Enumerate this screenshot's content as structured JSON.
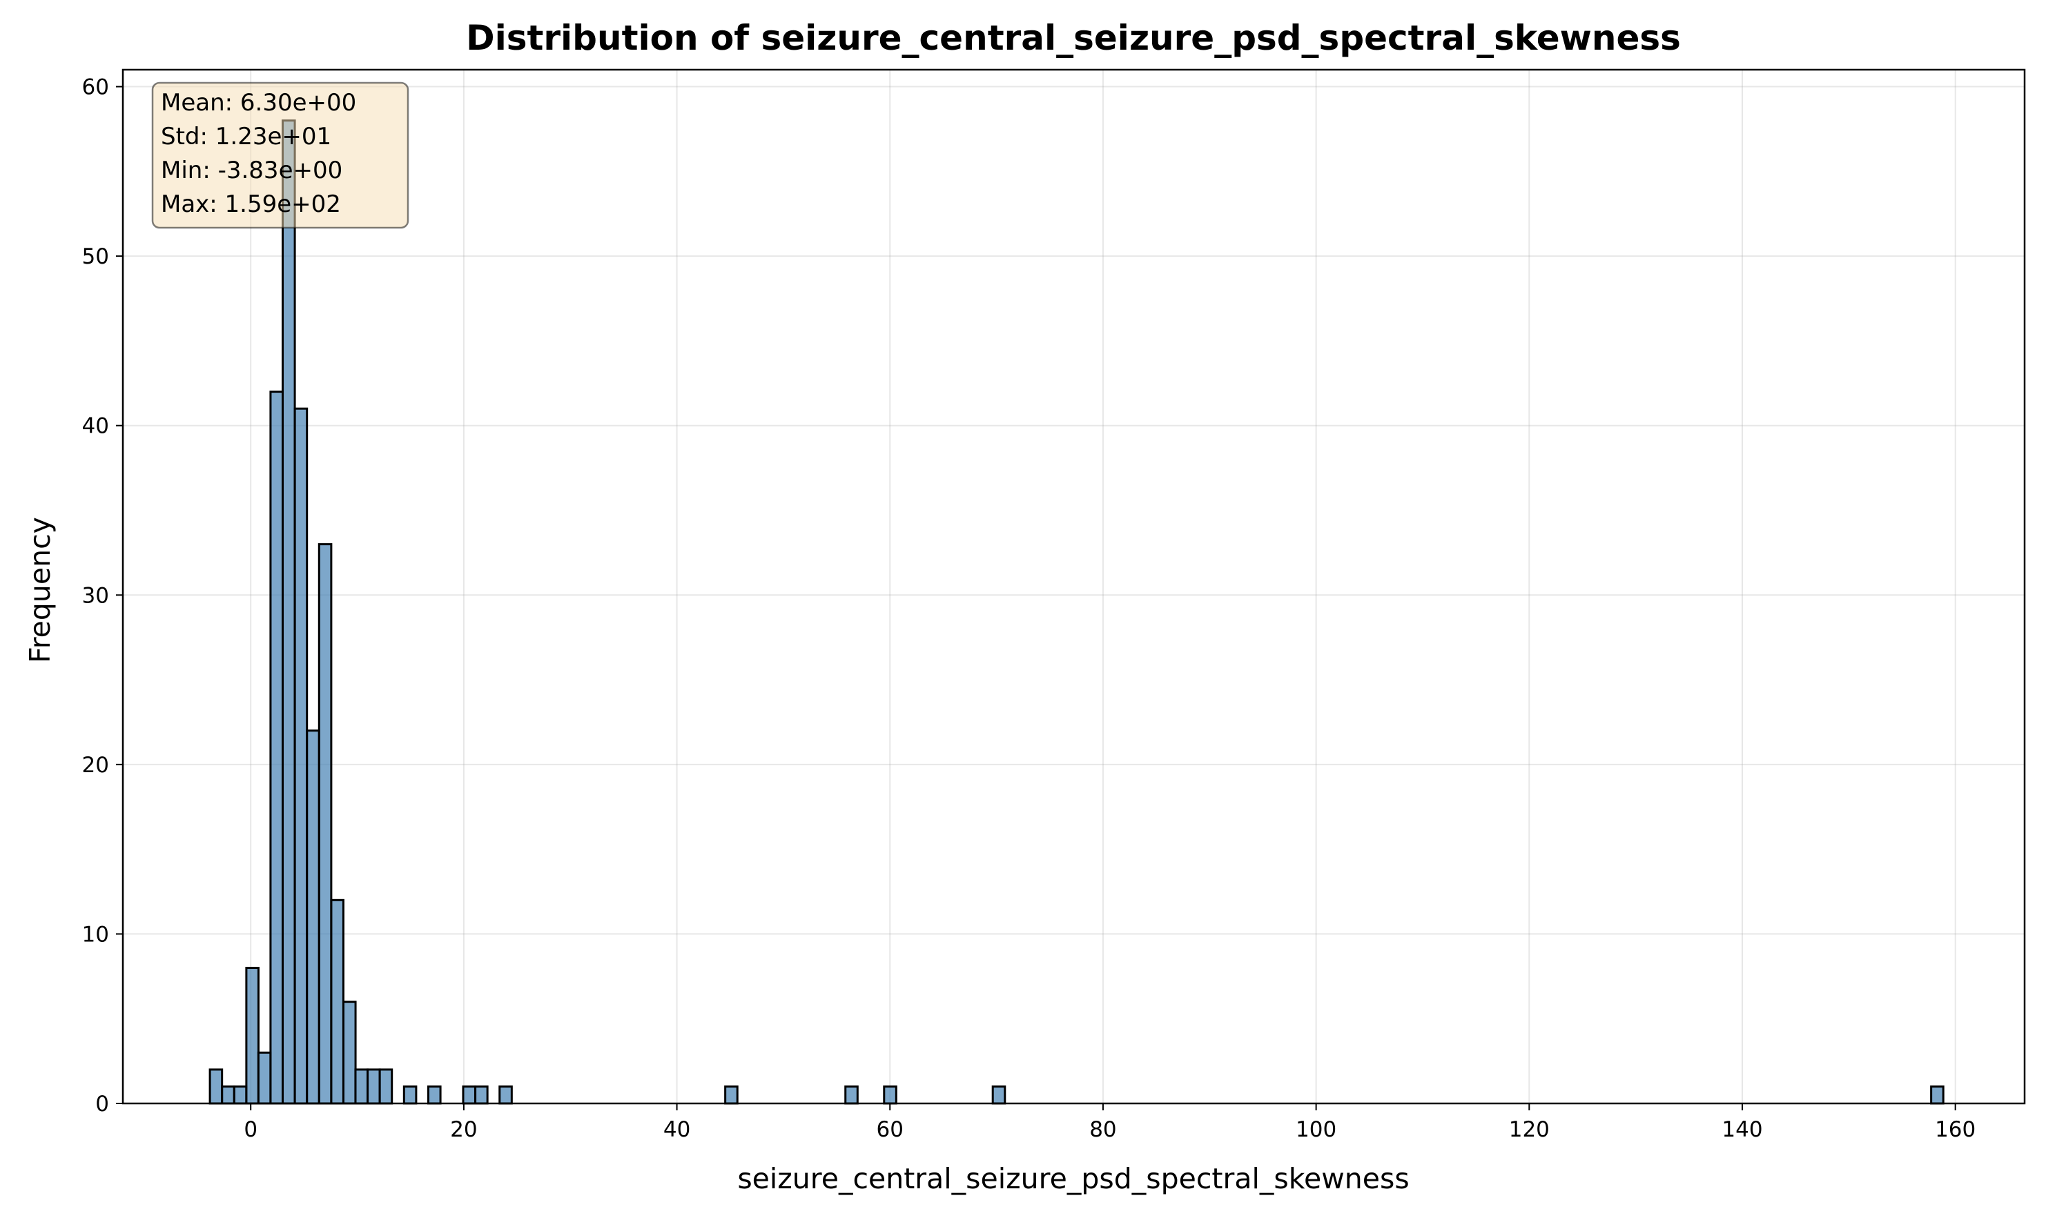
{
  "chart_data": {
    "type": "histogram",
    "title": "Distribution of seizure_central_seizure_psd_spectral_skewness",
    "xlabel": "seizure_central_seizure_psd_spectral_skewness",
    "ylabel": "Frequency",
    "xlim": [
      -12.0,
      166.5
    ],
    "ylim": [
      0,
      61
    ],
    "xticks": [
      0,
      20,
      40,
      60,
      80,
      100,
      120,
      140,
      160
    ],
    "yticks": [
      0,
      10,
      20,
      30,
      40,
      50,
      60
    ],
    "grid": true,
    "bar_color": "#4682b4",
    "bar_edge_color": "#000000",
    "bin_start": -3.83,
    "bin_width": 1.1387,
    "bins": [
      {
        "x": -3.83,
        "count": 2
      },
      {
        "x": -2.69,
        "count": 1
      },
      {
        "x": -1.55,
        "count": 1
      },
      {
        "x": -0.41,
        "count": 8
      },
      {
        "x": 0.72,
        "count": 3
      },
      {
        "x": 1.86,
        "count": 42
      },
      {
        "x": 3.0,
        "count": 58
      },
      {
        "x": 4.14,
        "count": 41
      },
      {
        "x": 5.28,
        "count": 22
      },
      {
        "x": 6.42,
        "count": 33
      },
      {
        "x": 7.56,
        "count": 12
      },
      {
        "x": 8.7,
        "count": 6
      },
      {
        "x": 9.83,
        "count": 2
      },
      {
        "x": 10.97,
        "count": 2
      },
      {
        "x": 12.11,
        "count": 2
      },
      {
        "x": 14.39,
        "count": 1
      },
      {
        "x": 16.67,
        "count": 1
      },
      {
        "x": 19.94,
        "count": 1
      },
      {
        "x": 21.08,
        "count": 1
      },
      {
        "x": 23.36,
        "count": 1
      },
      {
        "x": 44.54,
        "count": 1
      },
      {
        "x": 55.82,
        "count": 1
      },
      {
        "x": 59.45,
        "count": 1
      },
      {
        "x": 69.65,
        "count": 1
      },
      {
        "x": 157.73,
        "count": 1
      }
    ],
    "stats": {
      "mean": "Mean: 6.30e+00",
      "std": "Std: 1.23e+01",
      "min": "Min: -3.83e+00",
      "max": "Max: 1.59e+02"
    }
  }
}
